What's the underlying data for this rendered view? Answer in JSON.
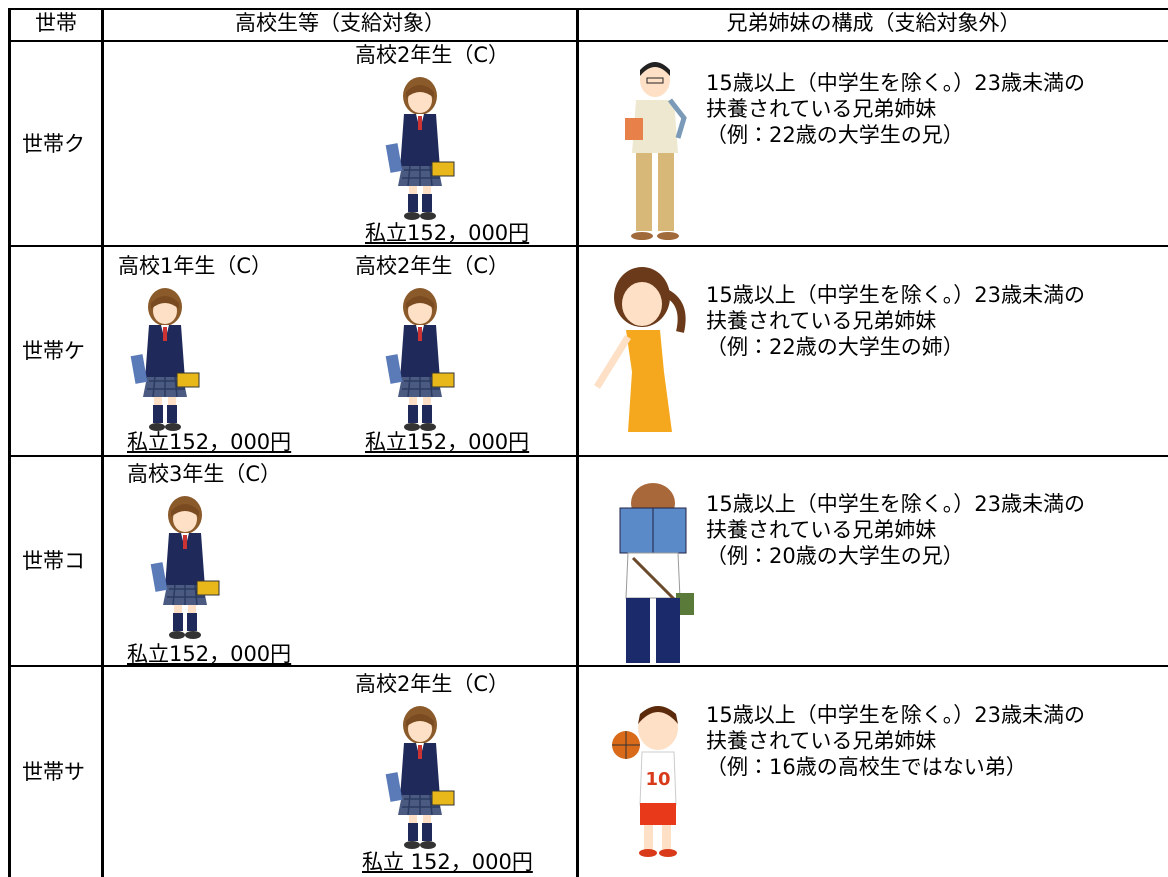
{
  "header": {
    "household": "世帯",
    "students": "高校生等（支給対象）",
    "siblings": "兄弟姉妹の構成（支給対象外）"
  },
  "rows": [
    {
      "household": "世帯ク",
      "students": [
        {
          "grade": "高校2年生（C）",
          "amount": "私立152，000円"
        }
      ],
      "siblings": [
        "15歳以上（中学生を除く。）23歳未満の",
        "扶養されている兄弟姉妹",
        "（例：22歳の大学生の兄）"
      ]
    },
    {
      "household": "世帯ケ",
      "students": [
        {
          "grade": "高校1年生（C）",
          "amount": "私立152，000円"
        },
        {
          "grade": "高校2年生（C）",
          "amount": "私立152，000円"
        }
      ],
      "siblings": [
        "15歳以上（中学生を除く。）23歳未満の",
        "扶養されている兄弟姉妹",
        "（例：22歳の大学生の姉）"
      ]
    },
    {
      "household": "世帯コ",
      "students": [
        {
          "grade": "高校3年生（C）",
          "amount": "私立152，000円"
        }
      ],
      "siblings": [
        "15歳以上（中学生を除く。）23歳未満の",
        "扶養されている兄弟姉妹",
        "（例：20歳の大学生の兄）"
      ]
    },
    {
      "household": "世帯サ",
      "students": [
        {
          "grade": "高校2年生（C）",
          "amount": "私立 152，000円"
        }
      ],
      "siblings": [
        "15歳以上（中学生を除く。）23歳未満の",
        "扶養されている兄弟姉妹",
        "（例：16歳の高校生ではない弟）"
      ]
    }
  ]
}
